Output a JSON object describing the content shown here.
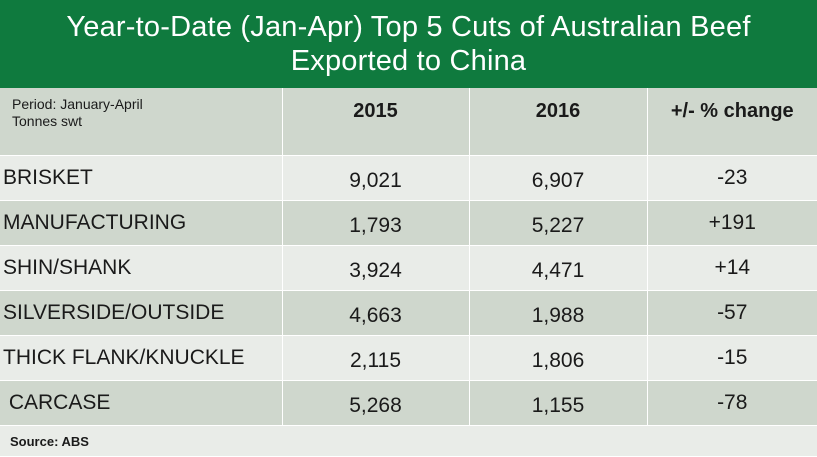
{
  "title": {
    "line1": "Year-to-Date (Jan-Apr) Top 5 Cuts of Australian Beef",
    "line2": "Exported  to China"
  },
  "header": {
    "period_line1": "Period: January-April",
    "period_line2": "Tonnes swt",
    "col_2015": "2015",
    "col_2016": "2016",
    "col_change": "+/- % change"
  },
  "rows": [
    {
      "cut": "BRISKET",
      "v2015": "9,021",
      "v2016": "6,907",
      "change": "-23"
    },
    {
      "cut": "MANUFACTURING",
      "v2015": "1,793",
      "v2016": "5,227",
      "change": "+191"
    },
    {
      "cut": "SHIN/SHANK",
      "v2015": "3,924",
      "v2016": "4,471",
      "change": "+14"
    },
    {
      "cut": "SILVERSIDE/OUTSIDE",
      "v2015": "4,663",
      "v2016": "1,988",
      "change": "-57"
    },
    {
      "cut": "THICK FLANK/KNUCKLE",
      "v2015": "2,115",
      "v2016": "1,806",
      "change": "-15"
    },
    {
      "cut": " CARCASE",
      "v2015": "5,268",
      "v2016": "1,155",
      "change": "-78"
    }
  ],
  "source": "Source:  ABS",
  "colors": {
    "title_bg": "#0f7a3e",
    "shade_row": "#cfd7cd",
    "light_row": "#e9ece8"
  },
  "chart_data": {
    "type": "table",
    "title": "Year-to-Date (Jan-Apr) Top 5 Cuts of Australian Beef Exported to China",
    "columns": [
      "Period: January-April Tonnes swt",
      "2015",
      "2016",
      "+/- % change"
    ],
    "categories": [
      "BRISKET",
      "MANUFACTURING",
      "SHIN/SHANK",
      "SILVERSIDE/OUTSIDE",
      "THICK FLANK/KNUCKLE",
      "CARCASE"
    ],
    "series": [
      {
        "name": "2015",
        "values": [
          9021,
          1793,
          3924,
          4663,
          2115,
          5268
        ]
      },
      {
        "name": "2016",
        "values": [
          6907,
          5227,
          4471,
          1988,
          1806,
          1155
        ]
      },
      {
        "name": "+/- % change",
        "values": [
          -23,
          191,
          14,
          -57,
          -15,
          -78
        ]
      }
    ],
    "unit": "Tonnes swt"
  }
}
